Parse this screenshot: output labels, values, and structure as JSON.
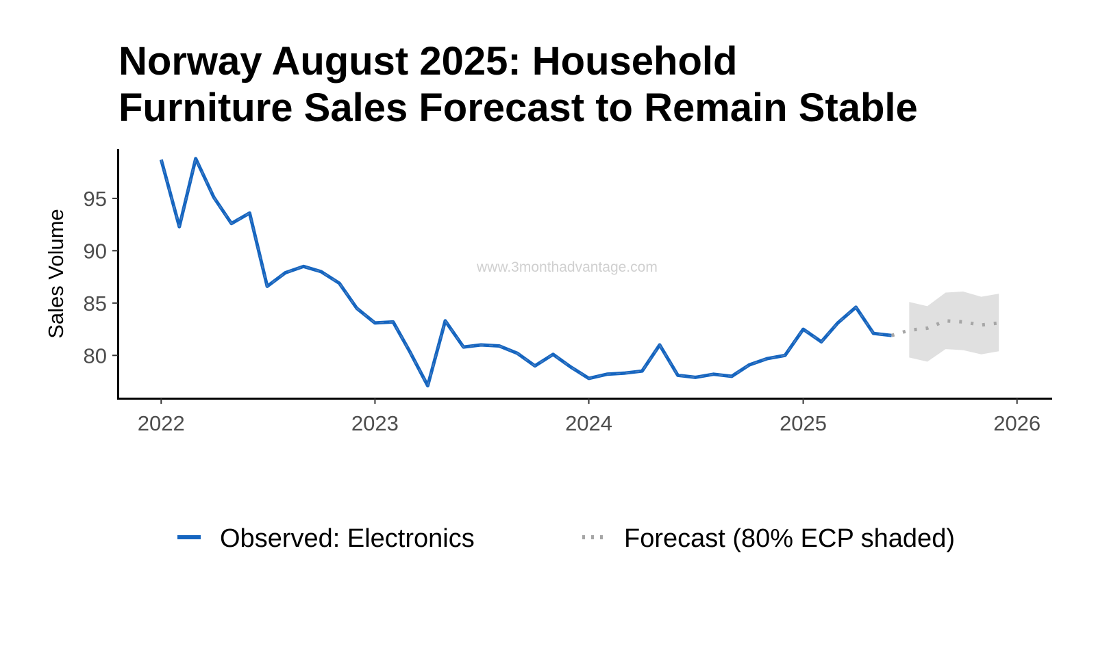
{
  "chart_data": {
    "type": "line",
    "title_lines": [
      "Norway August 2025: Household",
      "Furniture Sales Forecast to Remain Stable"
    ],
    "xlabel": "",
    "ylabel": "Sales Volume",
    "watermark": "www.3monthadvantage.com",
    "x_axis": {
      "range": [
        "2021-10-19",
        "2026-03-02"
      ],
      "tick_dates": [
        "2022-01-01",
        "2023-01-01",
        "2024-01-01",
        "2025-01-01",
        "2026-01-01"
      ],
      "tick_labels": [
        "2022",
        "2023",
        "2024",
        "2025",
        "2026"
      ]
    },
    "y_axis": {
      "range": [
        75.9,
        99.7
      ],
      "ticks": [
        80,
        85,
        90,
        95
      ]
    },
    "grid": false,
    "legend_position": "bottom",
    "series": [
      {
        "name": "Observed: Electronics",
        "style": "solid",
        "color": "#1565c0",
        "x": [
          "2022-01-01",
          "2022-02-01",
          "2022-03-01",
          "2022-04-01",
          "2022-05-01",
          "2022-06-01",
          "2022-07-01",
          "2022-08-01",
          "2022-09-01",
          "2022-10-01",
          "2022-11-01",
          "2022-12-01",
          "2023-01-01",
          "2023-02-01",
          "2023-03-01",
          "2023-04-01",
          "2023-05-01",
          "2023-06-01",
          "2023-07-01",
          "2023-08-01",
          "2023-09-01",
          "2023-10-01",
          "2023-11-01",
          "2023-12-01",
          "2024-01-01",
          "2024-02-01",
          "2024-03-01",
          "2024-04-01",
          "2024-05-01",
          "2024-06-01",
          "2024-07-01",
          "2024-08-01",
          "2024-09-01",
          "2024-10-01",
          "2024-11-01",
          "2024-12-01",
          "2025-01-01",
          "2025-02-01",
          "2025-03-01",
          "2025-04-01",
          "2025-05-01",
          "2025-06-01"
        ],
        "values": [
          98.7,
          92.3,
          98.8,
          95.1,
          92.6,
          93.6,
          86.6,
          87.9,
          88.5,
          88.0,
          86.9,
          84.5,
          83.1,
          83.2,
          80.4,
          77.1,
          83.3,
          80.8,
          81.0,
          80.9,
          80.2,
          79.0,
          80.1,
          78.9,
          77.8,
          78.2,
          78.3,
          78.5,
          81.0,
          78.1,
          77.9,
          78.2,
          78.0,
          79.1,
          79.7,
          80.0,
          82.5,
          81.3,
          83.1,
          84.6,
          82.1,
          81.9
        ]
      },
      {
        "name": "Forecast (80% ECP shaded)",
        "style": "dotted",
        "color": "#a6a6a6",
        "x": [
          "2025-06-01",
          "2025-07-01",
          "2025-08-01",
          "2025-09-01",
          "2025-10-01",
          "2025-11-01",
          "2025-12-01"
        ],
        "values": [
          81.9,
          82.4,
          82.6,
          83.3,
          83.2,
          82.9,
          83.1
        ],
        "interval": {
          "label": "80% ECP",
          "x": [
            "2025-07-01",
            "2025-08-01",
            "2025-09-01",
            "2025-10-01",
            "2025-11-01",
            "2025-12-01"
          ],
          "lower": [
            79.8,
            79.4,
            80.6,
            80.5,
            80.1,
            80.4
          ],
          "upper": [
            85.1,
            84.7,
            86.0,
            86.1,
            85.6,
            85.9
          ]
        }
      }
    ],
    "band_color": "#e0e0e0"
  }
}
